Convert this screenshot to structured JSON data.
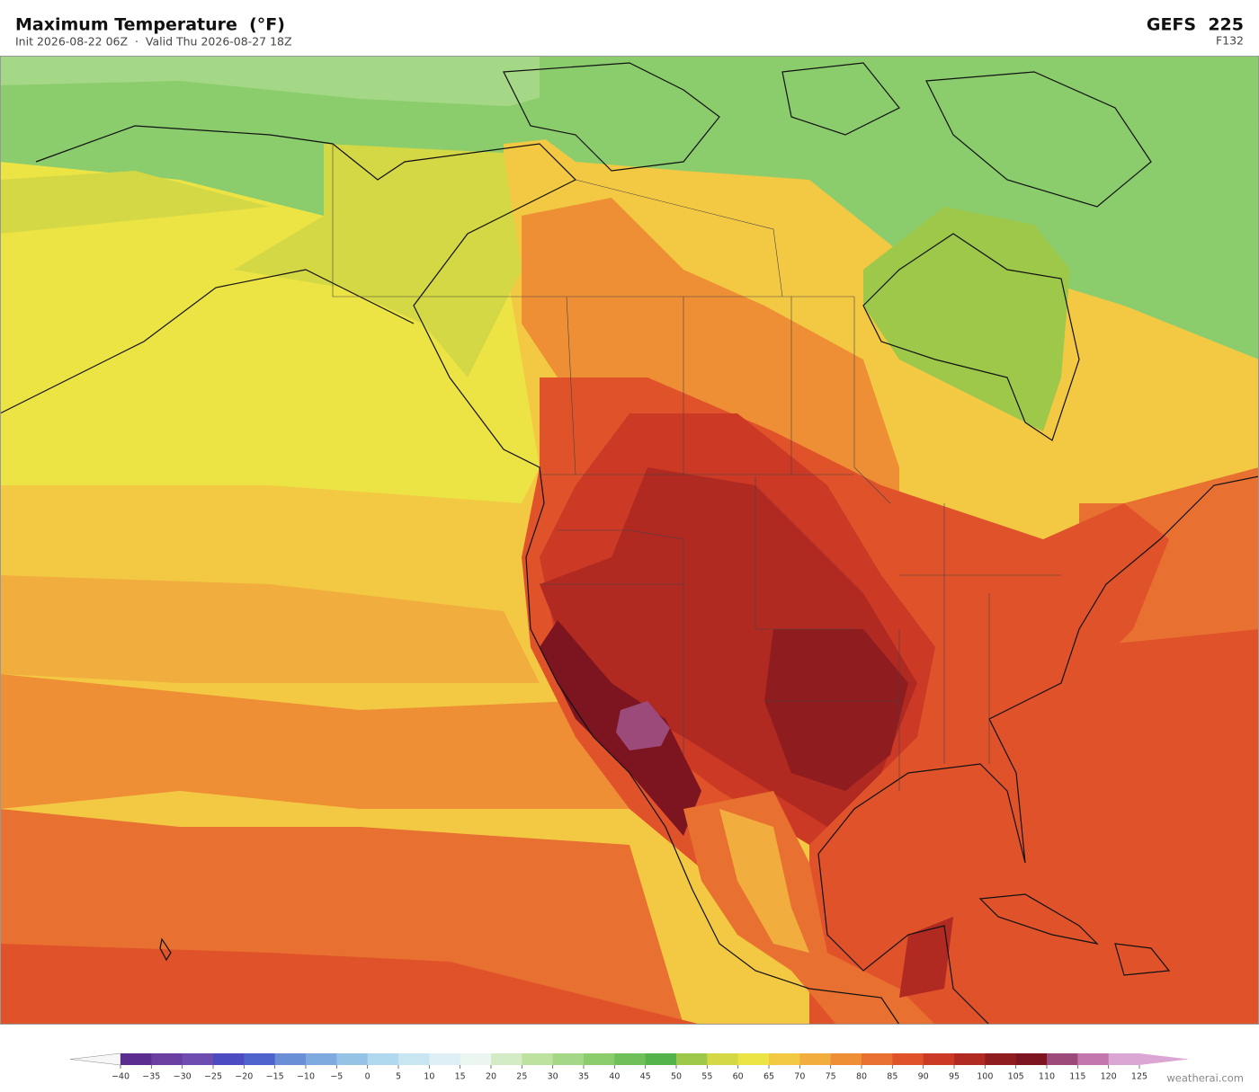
{
  "header": {
    "title": "Maximum Temperature  (°F)",
    "subtitle": "Init 2026-08-22 06Z  ·  Valid Thu 2026-08-27 18Z",
    "model": "GEFS  225",
    "forecast_hour": "F132"
  },
  "colorbar": {
    "ticks": [
      {
        "value": -40,
        "label": "−40"
      },
      {
        "value": -35,
        "label": "−35"
      },
      {
        "value": -30,
        "label": "−30"
      },
      {
        "value": -25,
        "label": "−25"
      },
      {
        "value": -20,
        "label": "−20"
      },
      {
        "value": -15,
        "label": "−15"
      },
      {
        "value": -10,
        "label": "−10"
      },
      {
        "value": -5,
        "label": "−5"
      },
      0,
      5,
      10,
      15,
      20,
      25,
      30,
      35,
      40,
      45,
      50,
      55,
      60,
      65,
      70,
      75,
      80,
      85,
      90,
      95,
      100,
      105,
      110,
      115,
      120,
      125
    ],
    "colors": [
      "#5b2d91",
      "#6a3fa0",
      "#6f4db0",
      "#4c4cc0",
      "#4f63cc",
      "#6a8fd6",
      "#7faadf",
      "#95c3e6",
      "#b0d8ee",
      "#c8e6f2",
      "#deeff5",
      "#eaf6ef",
      "#d3ecc6",
      "#bde2a0",
      "#a4d786",
      "#8bcc6c",
      "#6fbf5a",
      "#55b34c",
      "#9dc84a",
      "#d5d845",
      "#ece345",
      "#f3c944",
      "#f2ad3f",
      "#ee8f35",
      "#e87030",
      "#e0522a",
      "#cc3a26",
      "#b02a22",
      "#8f1c1f",
      "#7c1520",
      "#9b4a7a",
      "#c276ad",
      "#dba6d4"
    ]
  },
  "watermark": "weatherai.com"
}
